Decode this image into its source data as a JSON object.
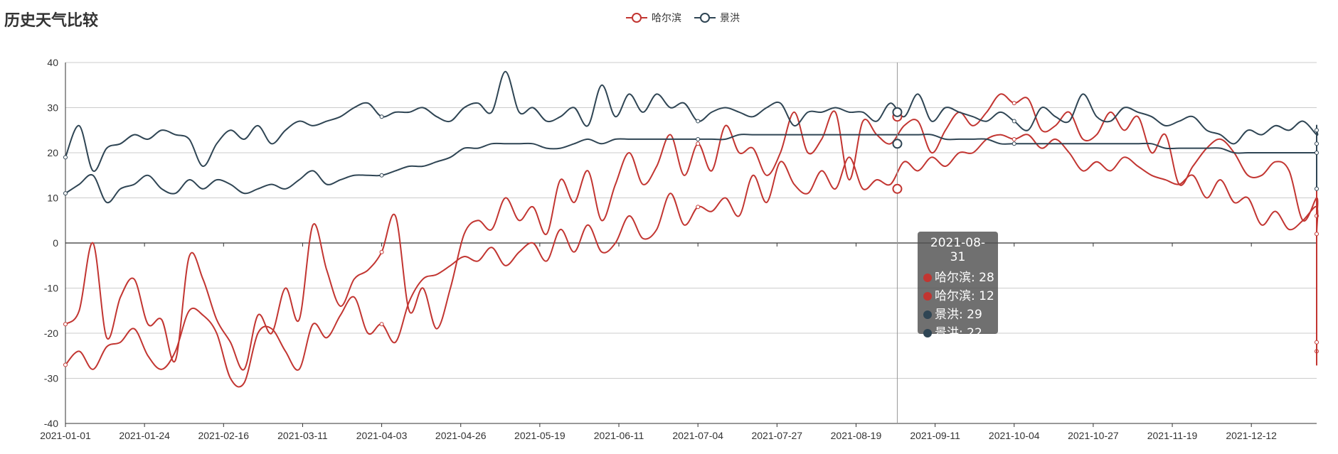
{
  "chart_data": {
    "type": "line",
    "title": "历史天气比较",
    "legend": [
      {
        "name": "哈尔滨",
        "color": "#c23531"
      },
      {
        "name": "景洪",
        "color": "#2f4554"
      }
    ],
    "ylim": [
      -40,
      40
    ],
    "y_ticks": [
      -40,
      -30,
      -20,
      -10,
      0,
      10,
      20,
      30,
      40
    ],
    "x_ticks": [
      "2021-01-01",
      "2021-01-24",
      "2021-02-16",
      "2021-03-11",
      "2021-04-03",
      "2021-04-26",
      "2021-05-19",
      "2021-06-11",
      "2021-07-04",
      "2021-07-27",
      "2021-08-19",
      "2021-09-11",
      "2021-10-04",
      "2021-10-27",
      "2021-11-19",
      "2021-12-12"
    ],
    "x_range": [
      "2021-01-01",
      "2021-12-31"
    ],
    "grid": true,
    "legend_placement": "top-center",
    "sampling_interval_days": 4,
    "series": [
      {
        "name": "哈尔滨",
        "color": "#c23531",
        "variant": "high",
        "values": [
          -18,
          -15,
          0,
          -21,
          -12,
          -8,
          -18,
          -17,
          -26,
          -3,
          -8,
          -17,
          -22,
          -28,
          -16,
          -20,
          -10,
          -17,
          4,
          -6,
          -14,
          -8,
          -6,
          -2,
          6,
          -15,
          -10,
          -19,
          -10,
          2,
          5,
          3,
          10,
          5,
          8,
          2,
          14,
          9,
          16,
          5,
          13,
          20,
          13,
          17,
          24,
          15,
          22,
          16,
          26,
          20,
          21,
          15,
          20,
          29,
          20,
          23,
          29,
          14,
          27,
          24,
          22,
          26,
          27,
          20,
          25,
          29,
          26,
          29,
          33,
          31,
          32,
          25,
          26,
          29,
          23,
          24,
          29,
          25,
          28,
          20,
          24,
          13,
          17,
          21,
          23,
          20,
          15,
          15,
          18,
          16,
          5,
          10,
          6,
          12,
          6,
          12,
          9,
          13,
          0,
          4,
          2,
          4,
          3,
          -2,
          -3,
          -8,
          -15,
          -10,
          -5,
          -13,
          -15,
          -18,
          -11,
          -15,
          -19,
          -24,
          -26,
          -23
        ]
      },
      {
        "name": "哈尔滨",
        "color": "#c23531",
        "variant": "low",
        "values": [
          -27,
          -24,
          -28,
          -23,
          -22,
          -19,
          -25,
          -28,
          -24,
          -15,
          -16,
          -20,
          -30,
          -31,
          -20,
          -19,
          -24,
          -28,
          -18,
          -21,
          -16,
          -12,
          -20,
          -18,
          -22,
          -13,
          -8,
          -7,
          -5,
          -3,
          -4,
          -1,
          -5,
          -2,
          0,
          -4,
          3,
          -2,
          4,
          -2,
          0,
          6,
          1,
          3,
          11,
          4,
          8,
          7,
          10,
          6,
          15,
          9,
          18,
          13,
          11,
          16,
          12,
          19,
          12,
          14,
          13,
          18,
          16,
          19,
          17,
          20,
          20,
          23,
          24,
          23,
          24,
          21,
          23,
          20,
          16,
          18,
          16,
          19,
          17,
          15,
          14,
          13,
          15,
          10,
          14,
          9,
          10,
          4,
          7,
          3,
          5,
          8,
          2,
          -4,
          1,
          -1,
          0,
          -1,
          -2,
          -6,
          -11,
          -7,
          -5,
          -3,
          -2,
          -8,
          -12,
          -10,
          -13,
          -9,
          -7,
          -18,
          -9,
          -15,
          -17,
          -22,
          -27,
          -24
        ]
      },
      {
        "name": "景洪",
        "color": "#2f4554",
        "variant": "high",
        "values": [
          19,
          26,
          16,
          21,
          22,
          24,
          23,
          25,
          24,
          23,
          17,
          22,
          25,
          23,
          26,
          22,
          25,
          27,
          26,
          27,
          28,
          30,
          31,
          28,
          29,
          29,
          30,
          28,
          27,
          30,
          31,
          29,
          38,
          29,
          30,
          27,
          28,
          30,
          26,
          35,
          28,
          33,
          29,
          33,
          30,
          31,
          27,
          29,
          30,
          29,
          28,
          30,
          31,
          26,
          29,
          29,
          30,
          29,
          29,
          27,
          31,
          28,
          33,
          27,
          30,
          29,
          28,
          27,
          29,
          27,
          25,
          30,
          28,
          27,
          33,
          28,
          27,
          30,
          29,
          28,
          26,
          27,
          28,
          25,
          24,
          22,
          25,
          24,
          26,
          25,
          27,
          24,
          25,
          26,
          24,
          26,
          23,
          25,
          24,
          26,
          23,
          24,
          25,
          26,
          23,
          24,
          23,
          22,
          21,
          22,
          23,
          22,
          24,
          22,
          20,
          22,
          21,
          25
        ]
      },
      {
        "name": "景洪",
        "color": "#2f4554",
        "variant": "low",
        "values": [
          11,
          13,
          15,
          9,
          12,
          13,
          15,
          12,
          11,
          14,
          12,
          14,
          13,
          11,
          12,
          13,
          12,
          14,
          16,
          13,
          14,
          15,
          15,
          15,
          16,
          17,
          17,
          18,
          19,
          21,
          21,
          22,
          22,
          22,
          22,
          21,
          21,
          22,
          23,
          22,
          23,
          23,
          23,
          23,
          23,
          23,
          23,
          23,
          23,
          24,
          24,
          24,
          24,
          24,
          24,
          24,
          24,
          24,
          24,
          24,
          24,
          24,
          24,
          24,
          23,
          23,
          23,
          23,
          22,
          22,
          22,
          22,
          22,
          22,
          22,
          22,
          22,
          22,
          22,
          22,
          21,
          21,
          21,
          21,
          21,
          20,
          20,
          20,
          20,
          20,
          20,
          20,
          20,
          19,
          19,
          19,
          18,
          18,
          18,
          17,
          17,
          17,
          16,
          16,
          16,
          15,
          15,
          15,
          14,
          14,
          14,
          13,
          13,
          13,
          12,
          12,
          12,
          14
        ]
      }
    ],
    "axis_pointer_date": "2021-08-31",
    "tooltip": {
      "date": "2021-08-31",
      "rows": [
        {
          "name": "哈尔滨",
          "value": 28,
          "label": "哈尔滨: 28",
          "color": "#c23531"
        },
        {
          "name": "哈尔滨",
          "value": 12,
          "label": "哈尔滨: 12",
          "color": "#c23531"
        },
        {
          "name": "景洪",
          "value": 29,
          "label": "景洪: 29",
          "color": "#2f4554"
        },
        {
          "name": "景洪",
          "value": 22,
          "label": "景洪: 22",
          "color": "#2f4554"
        }
      ]
    }
  }
}
